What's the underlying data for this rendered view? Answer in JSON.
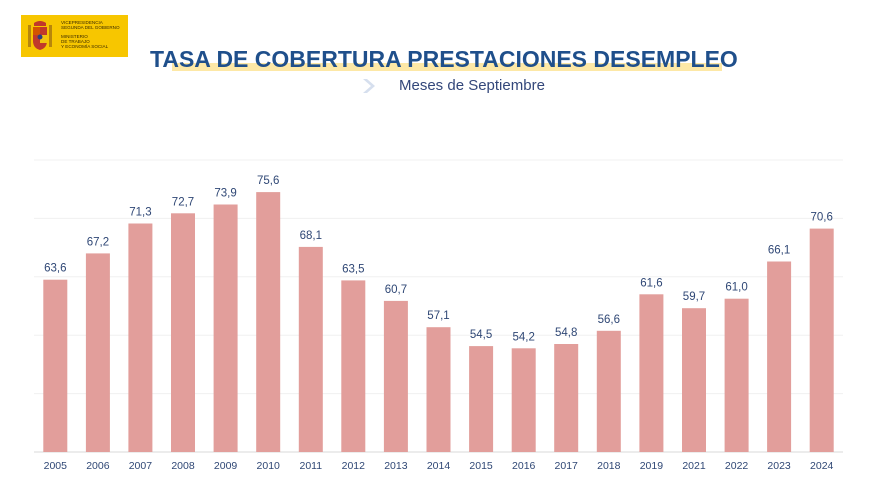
{
  "logo": {
    "line1": "Vicepresidencia\nSegunda del Gobierno",
    "line2": "Ministerio\nde Trabajo\ny Economía Social"
  },
  "header": {
    "title": "TASA DE COBERTURA PRESTACIONES DESEMPLEO",
    "subtitle": "Meses de Septiembre"
  },
  "colors": {
    "bar": "#e29e9b",
    "title": "#1f4f8b",
    "highlight": "#fde8a6",
    "logo_bg": "#f7c600"
  },
  "chart_data": {
    "type": "bar",
    "title": "TASA DE COBERTURA PRESTACIONES DESEMPLEO",
    "subtitle": "Meses de Septiembre",
    "categories": [
      "2005",
      "2006",
      "2007",
      "2008",
      "2009",
      "2010",
      "2011",
      "2012",
      "2013",
      "2014",
      "2015",
      "2016",
      "2017",
      "2018",
      "2019",
      "2021",
      "2022",
      "2023",
      "2024"
    ],
    "values": [
      63.6,
      67.2,
      71.3,
      72.7,
      73.9,
      75.6,
      68.1,
      63.5,
      60.7,
      57.1,
      54.5,
      54.2,
      54.8,
      56.6,
      61.6,
      59.7,
      61.0,
      66.1,
      70.6
    ],
    "labels": [
      "63,6",
      "67,2",
      "71,3",
      "72,7",
      "73,9",
      "75,6",
      "68,1",
      "63,5",
      "60,7",
      "57,1",
      "54,5",
      "54,2",
      "54,8",
      "56,6",
      "61,6",
      "59,7",
      "61,0",
      "66,1",
      "70,6"
    ],
    "xlabel": "",
    "ylabel": "",
    "ylim": [
      40,
      80
    ],
    "grid": true,
    "legend": "none"
  }
}
